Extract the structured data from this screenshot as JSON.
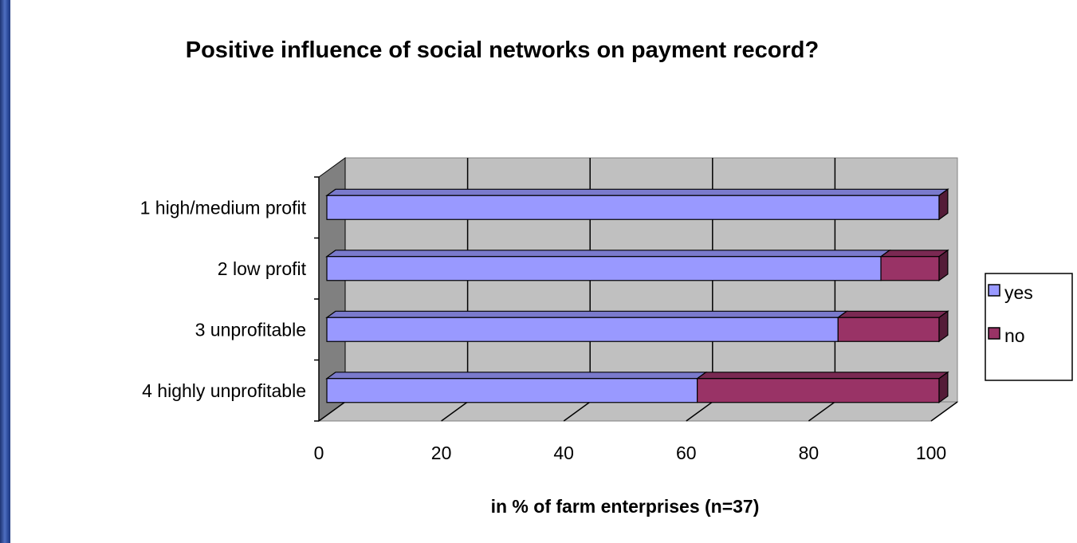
{
  "chart_data": {
    "type": "bar",
    "orientation": "horizontal",
    "stacked": true,
    "title": "Positive influence of social networks on payment record?",
    "categories": [
      "1 high/medium  profit",
      "2 low profit",
      "3 unprofitable",
      "4 highly unprofitable"
    ],
    "series": [
      {
        "name": "yes",
        "values": [
          100,
          90.5,
          83.5,
          60.5
        ]
      },
      {
        "name": "no",
        "values": [
          0,
          9.5,
          16.5,
          39.5
        ]
      }
    ],
    "xlabel": "in % of farm enterprises (n=37)",
    "ylabel": "",
    "xlim": [
      0,
      100
    ],
    "xticks": [
      "0",
      "20",
      "40",
      "60",
      "80",
      "100"
    ],
    "grid": true,
    "legend": "right",
    "colors": {
      "yes": "#9999ff",
      "no": "#993366",
      "plot_wall": "#c0c0c0",
      "plot_wall_side": "#808080",
      "frame": "#2f4a92"
    }
  }
}
